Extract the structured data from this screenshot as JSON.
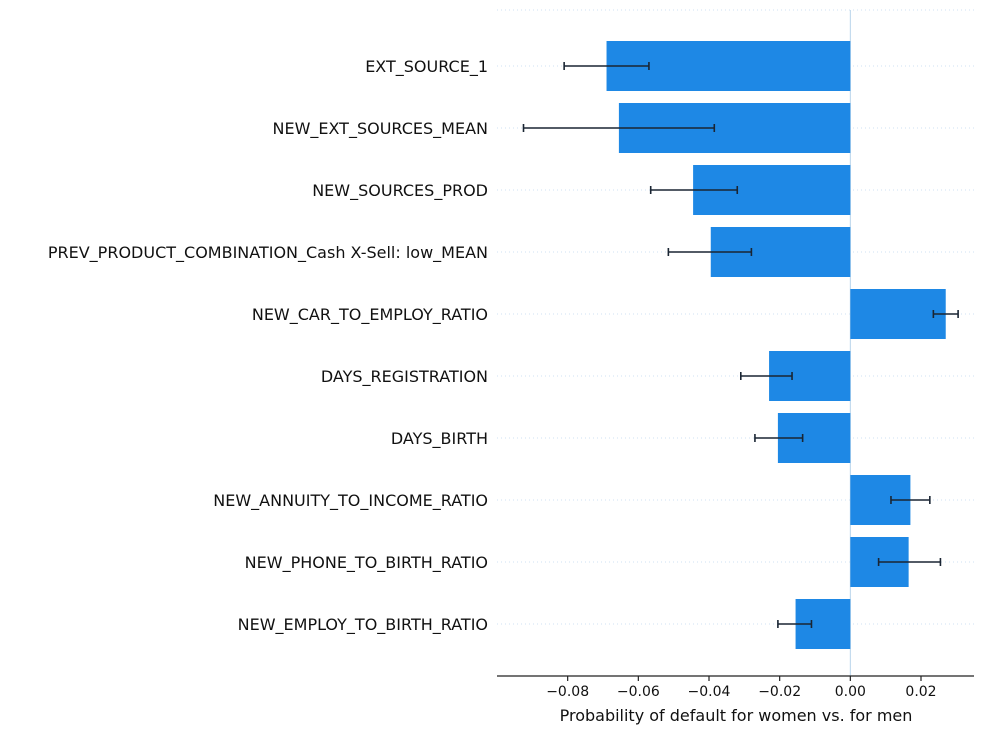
{
  "chart_data": {
    "type": "bar",
    "orientation": "horizontal",
    "xlabel": "Probability of default for women vs. for men",
    "xlim": [
      -0.1,
      0.035
    ],
    "xticks": [
      -0.08,
      -0.06,
      -0.04,
      -0.02,
      0.0,
      0.02
    ],
    "xtick_labels": [
      "−0.08",
      "−0.06",
      "−0.04",
      "−0.02",
      "0.00",
      "0.02"
    ],
    "grid": "dotted horizontal lines per category",
    "colors": {
      "bar": "#1e88e5",
      "error_bar": "#1a2533",
      "grid": "#cfe2f3"
    },
    "categories": [
      "EXT_SOURCE_1",
      "NEW_EXT_SOURCES_MEAN",
      "NEW_SOURCES_PROD",
      "PREV_PRODUCT_COMBINATION_Cash X-Sell: low_MEAN",
      "NEW_CAR_TO_EMPLOY_RATIO",
      "DAYS_REGISTRATION",
      "DAYS_BIRTH",
      "NEW_ANNUITY_TO_INCOME_RATIO",
      "NEW_PHONE_TO_BIRTH_RATIO",
      "NEW_EMPLOY_TO_BIRTH_RATIO"
    ],
    "values": [
      -0.069,
      -0.0655,
      -0.0445,
      -0.0395,
      0.027,
      -0.023,
      -0.0205,
      0.017,
      0.0165,
      -0.0155
    ],
    "error_low": [
      -0.081,
      -0.0925,
      -0.0565,
      -0.0515,
      0.0235,
      -0.031,
      -0.027,
      0.0115,
      0.008,
      -0.0205
    ],
    "error_high": [
      -0.057,
      -0.0385,
      -0.032,
      -0.028,
      0.0305,
      -0.0165,
      -0.0135,
      0.0225,
      0.0255,
      -0.011
    ]
  }
}
